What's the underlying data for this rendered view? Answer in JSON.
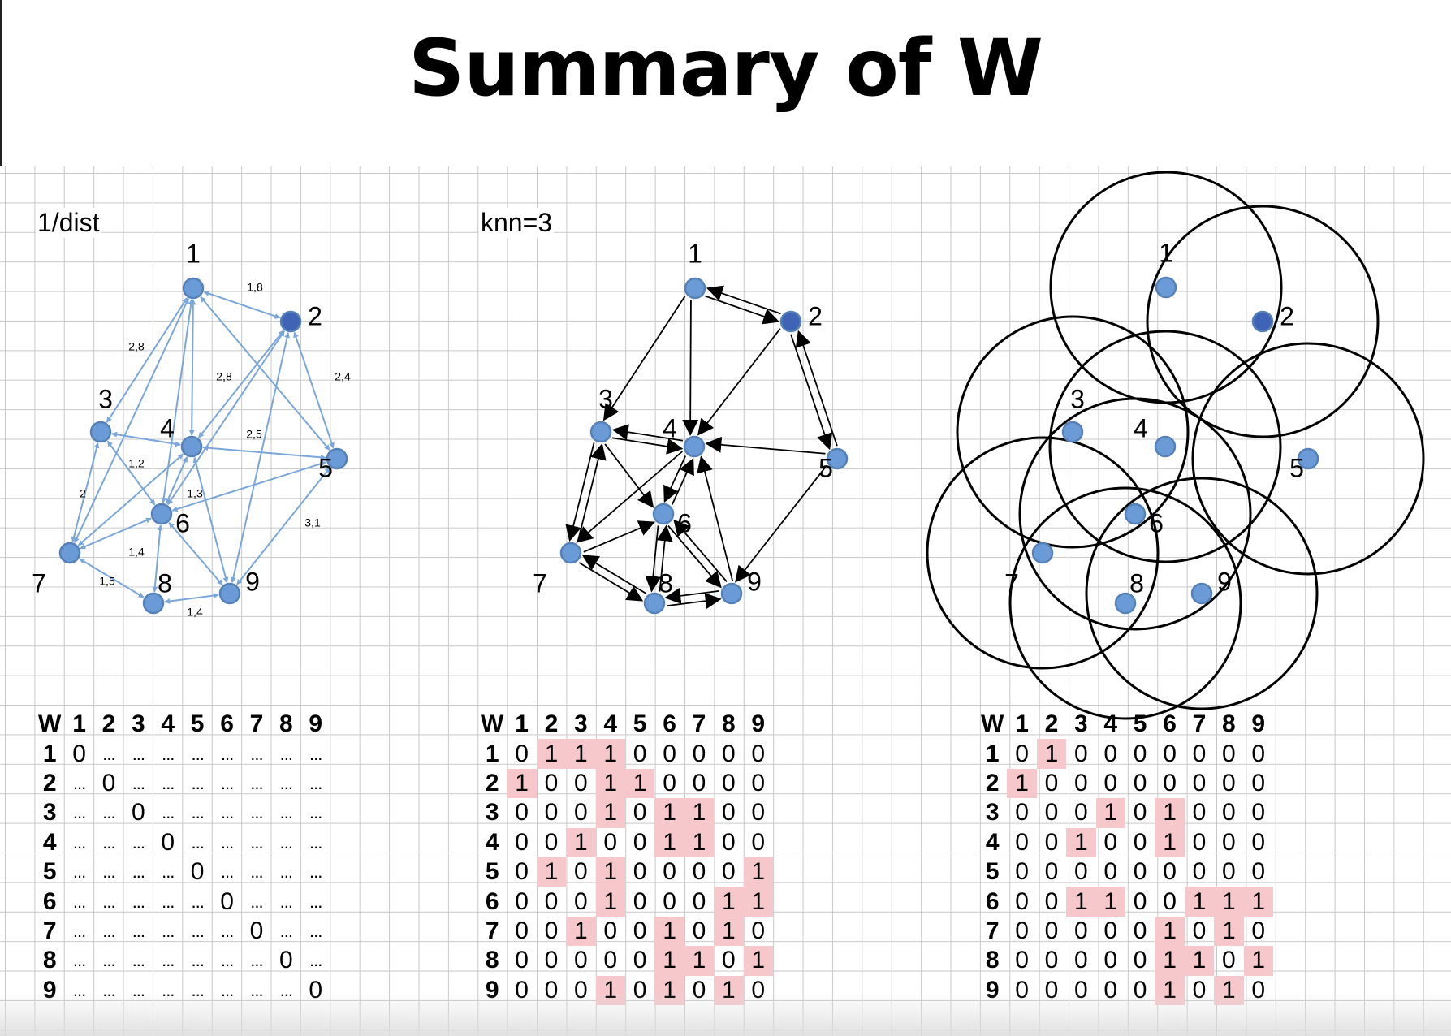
{
  "title": "Summary of W",
  "panels": [
    {
      "label": "1/dist",
      "node_labels": [
        "1",
        "2",
        "3",
        "4",
        "5",
        "6",
        "7",
        "8",
        "9"
      ],
      "edge_labels": [
        "1,8",
        "2,8",
        "2,8",
        "2,4",
        "2,5",
        "1,2",
        "2",
        "1,3",
        "3,1",
        "1,4",
        "1,5",
        "1,4"
      ],
      "node_color": "#6a9bd6",
      "edge_color": "#7aa6d9"
    },
    {
      "label": "knn=3",
      "node_labels": [
        "1",
        "2",
        "3",
        "4",
        "5",
        "6",
        "7",
        "8",
        "9"
      ],
      "edge_color": "#000000",
      "edges": [
        [
          1,
          2
        ],
        [
          1,
          3
        ],
        [
          1,
          4
        ],
        [
          2,
          1
        ],
        [
          2,
          4
        ],
        [
          2,
          5
        ],
        [
          3,
          4
        ],
        [
          3,
          6
        ],
        [
          3,
          7
        ],
        [
          4,
          3
        ],
        [
          4,
          6
        ],
        [
          4,
          7
        ],
        [
          5,
          2
        ],
        [
          5,
          4
        ],
        [
          5,
          9
        ],
        [
          6,
          4
        ],
        [
          6,
          8
        ],
        [
          6,
          9
        ],
        [
          7,
          3
        ],
        [
          7,
          6
        ],
        [
          7,
          8
        ],
        [
          8,
          6
        ],
        [
          8,
          7
        ],
        [
          8,
          9
        ],
        [
          9,
          4
        ],
        [
          9,
          6
        ],
        [
          9,
          8
        ]
      ]
    },
    {
      "label": "",
      "node_labels": [
        "1",
        "2",
        "3",
        "4",
        "5",
        "6",
        "7",
        "8",
        "9"
      ],
      "circle_color": "#000000"
    }
  ],
  "matrices": [
    {
      "corner": "W",
      "col_headers": [
        "1",
        "2",
        "3",
        "4",
        "5",
        "6",
        "7",
        "8",
        "9"
      ],
      "row_headers": [
        "1",
        "2",
        "3",
        "4",
        "5",
        "6",
        "7",
        "8",
        "9"
      ],
      "rows": [
        [
          "0",
          "...",
          "...",
          "...",
          "...",
          "...",
          "...",
          "...",
          "..."
        ],
        [
          "...",
          "0",
          "...",
          "...",
          "...",
          "...",
          "...",
          "...",
          "..."
        ],
        [
          "...",
          "...",
          "0",
          "...",
          "...",
          "...",
          "...",
          "...",
          "..."
        ],
        [
          "...",
          "...",
          "...",
          "0",
          "...",
          "...",
          "...",
          "...",
          "..."
        ],
        [
          "...",
          "...",
          "...",
          "...",
          "0",
          "...",
          "...",
          "...",
          "..."
        ],
        [
          "...",
          "...",
          "...",
          "...",
          "...",
          "0",
          "...",
          "...",
          "..."
        ],
        [
          "...",
          "...",
          "...",
          "...",
          "...",
          "...",
          "0",
          "...",
          "..."
        ],
        [
          "...",
          "...",
          "...",
          "...",
          "...",
          "...",
          "...",
          "0",
          "..."
        ],
        [
          "...",
          "...",
          "...",
          "...",
          "...",
          "...",
          "...",
          "...",
          "0"
        ]
      ]
    },
    {
      "corner": "W",
      "col_headers": [
        "1",
        "2",
        "3",
        "4",
        "5",
        "6",
        "7",
        "8",
        "9"
      ],
      "row_headers": [
        "1",
        "2",
        "3",
        "4",
        "5",
        "6",
        "7",
        "8",
        "9"
      ],
      "rows": [
        [
          "0",
          "1",
          "1",
          "1",
          "0",
          "0",
          "0",
          "0",
          "0"
        ],
        [
          "1",
          "0",
          "0",
          "1",
          "1",
          "0",
          "0",
          "0",
          "0"
        ],
        [
          "0",
          "0",
          "0",
          "1",
          "0",
          "1",
          "1",
          "0",
          "0"
        ],
        [
          "0",
          "0",
          "1",
          "0",
          "0",
          "1",
          "1",
          "0",
          "0"
        ],
        [
          "0",
          "1",
          "0",
          "1",
          "0",
          "0",
          "0",
          "0",
          "1"
        ],
        [
          "0",
          "0",
          "0",
          "1",
          "0",
          "0",
          "0",
          "1",
          "1"
        ],
        [
          "0",
          "0",
          "1",
          "0",
          "0",
          "1",
          "0",
          "1",
          "0"
        ],
        [
          "0",
          "0",
          "0",
          "0",
          "0",
          "1",
          "1",
          "0",
          "1"
        ],
        [
          "0",
          "0",
          "0",
          "1",
          "0",
          "1",
          "0",
          "1",
          "0"
        ]
      ]
    },
    {
      "corner": "W",
      "col_headers": [
        "1",
        "2",
        "3",
        "4",
        "5",
        "6",
        "7",
        "8",
        "9"
      ],
      "row_headers": [
        "1",
        "2",
        "3",
        "4",
        "5",
        "6",
        "7",
        "8",
        "9"
      ],
      "rows": [
        [
          "0",
          "1",
          "0",
          "0",
          "0",
          "0",
          "0",
          "0",
          "0"
        ],
        [
          "1",
          "0",
          "0",
          "0",
          "0",
          "0",
          "0",
          "0",
          "0"
        ],
        [
          "0",
          "0",
          "0",
          "1",
          "0",
          "1",
          "0",
          "0",
          "0"
        ],
        [
          "0",
          "0",
          "1",
          "0",
          "0",
          "1",
          "0",
          "0",
          "0"
        ],
        [
          "0",
          "0",
          "0",
          "0",
          "0",
          "0",
          "0",
          "0",
          "0"
        ],
        [
          "0",
          "0",
          "1",
          "1",
          "0",
          "0",
          "1",
          "1",
          "1"
        ],
        [
          "0",
          "0",
          "0",
          "0",
          "0",
          "1",
          "0",
          "1",
          "0"
        ],
        [
          "0",
          "0",
          "0",
          "0",
          "0",
          "1",
          "1",
          "0",
          "1"
        ],
        [
          "0",
          "0",
          "0",
          "0",
          "0",
          "1",
          "0",
          "1",
          "0"
        ]
      ]
    }
  ],
  "colors": {
    "highlight_cell": "#f6c8cc",
    "node_fill": "#6a9bd6",
    "node_fill_dark": "#3f63b5",
    "node_stroke": "#5580b8",
    "grid": "#c9c9c9"
  }
}
